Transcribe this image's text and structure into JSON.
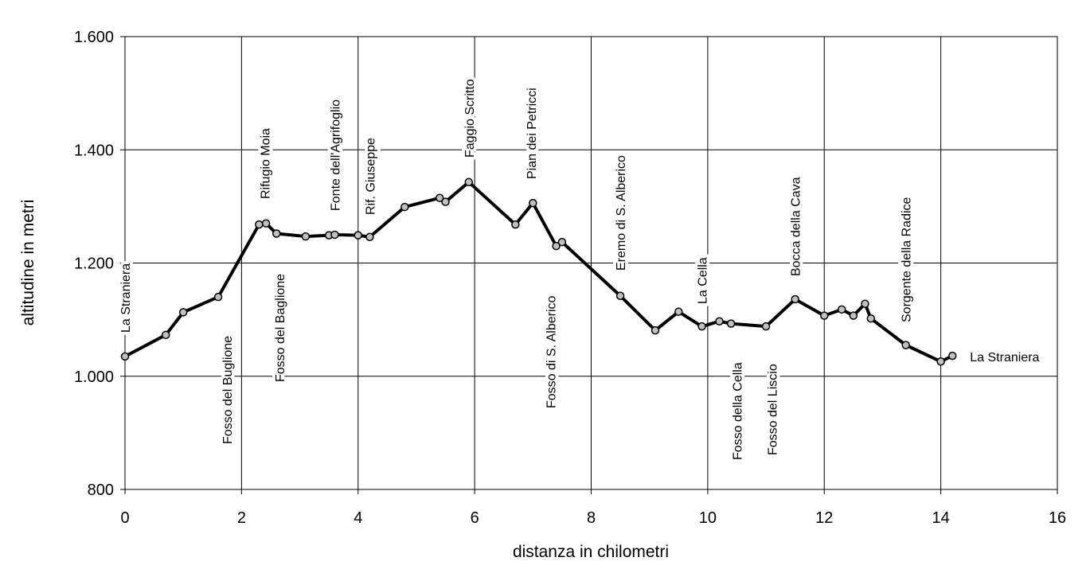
{
  "chart_data": {
    "type": "line",
    "x_label": "distanza in chilometri",
    "y_label": "altitudine  in metri",
    "x": [
      0,
      0.7,
      1.0,
      1.6,
      2.3,
      2.42,
      2.6,
      3.1,
      3.5,
      3.6,
      4.0,
      4.2,
      4.8,
      5.4,
      5.5,
      5.9,
      6.7,
      7.0,
      7.4,
      7.5,
      8.5,
      9.1,
      9.5,
      9.9,
      10.2,
      10.4,
      11.0,
      11.5,
      12.0,
      12.3,
      12.5,
      12.7,
      12.8,
      13.4,
      14.0,
      14.2
    ],
    "series": [
      {
        "color": "#000000",
        "marker_color": "#c0c0c0",
        "values": [
          1035,
          1073,
          1113,
          1140,
          1268,
          1270,
          1252,
          1247,
          1249,
          1250,
          1249,
          1246,
          1299,
          1315,
          1308,
          1343,
          1268,
          1306,
          1230,
          1237,
          1142,
          1081,
          1114,
          1088,
          1097,
          1093,
          1088,
          1136,
          1107,
          1118,
          1107,
          1128,
          1102,
          1055,
          1026,
          1036
        ]
      }
    ],
    "xlim": [
      0,
      16
    ],
    "xticks": [
      0,
      2,
      4,
      6,
      8,
      10,
      12,
      14,
      16
    ],
    "ylim": [
      800,
      1600
    ],
    "yticks": [
      800,
      {
        "value": 1000,
        "label": "1.000"
      },
      {
        "value": 1200,
        "label": "1.200"
      },
      {
        "value": 1400,
        "label": "1.400"
      },
      {
        "value": 1600,
        "label": "1.600"
      }
    ],
    "grid": true,
    "annotations": [
      {
        "text": "La Straniera",
        "x": 0
      },
      {
        "text": "Fosso del Buglione",
        "x": 1.75
      },
      {
        "text": "Rifugio Moia",
        "x": 2.4
      },
      {
        "text": "Fosso del Baglione",
        "x": 2.65
      },
      {
        "text": "Fonte dell'Agrifoglio",
        "x": 3.6
      },
      {
        "text": "Rif. Giuseppe",
        "x": 4.2
      },
      {
        "text": "Faggio Scritto",
        "x": 5.9
      },
      {
        "text": "Pian dei Petricci",
        "x": 6.97
      },
      {
        "text": "Fosso di S. Alberico",
        "x": 7.3
      },
      {
        "text": "Eremo di S. Alberico",
        "x": 8.5
      },
      {
        "text": "La Cella",
        "x": 9.9
      },
      {
        "text": "Fosso della Cella",
        "x": 10.5
      },
      {
        "text": "Fosso del Liscio",
        "x": 11.1
      },
      {
        "text": "Bocca della Cava",
        "x": 11.5
      },
      {
        "text": "Sorgente della Radice",
        "x": 13.4
      },
      {
        "text": "La Straniera",
        "x": 14.2
      }
    ]
  }
}
